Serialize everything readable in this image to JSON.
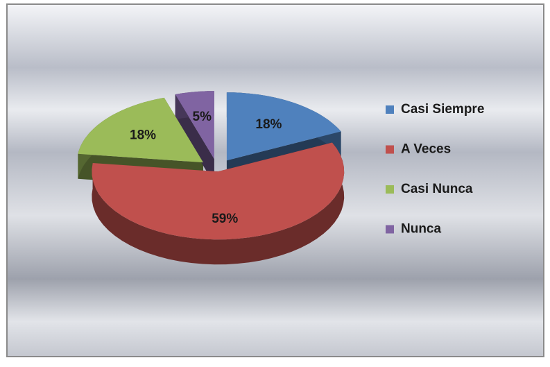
{
  "chart_data": {
    "type": "pie",
    "categories": [
      "Casi Siempre",
      "A Veces",
      "Casi Nunca",
      "Nunca"
    ],
    "values": [
      18,
      59,
      18,
      5
    ],
    "value_labels": [
      "18%",
      "59%",
      "18%",
      "5%"
    ],
    "colors": [
      "#4f81bd",
      "#c0504d",
      "#9bbb59",
      "#8064a2"
    ],
    "legend": "right"
  }
}
